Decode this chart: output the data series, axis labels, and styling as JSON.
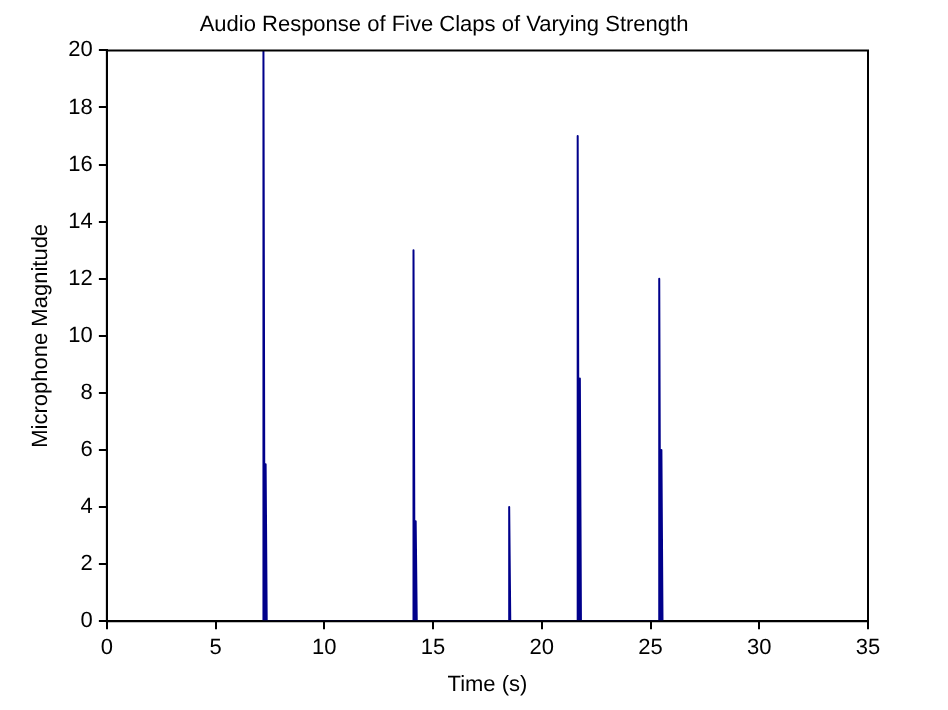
{
  "chart_data": {
    "type": "line",
    "title": "Audio Response of Five Claps of Varying Strength",
    "xlabel": "Time (s)",
    "ylabel": "Microphone Magnitude",
    "series": [
      {
        "color": "#00008b",
        "x": [
          7.15,
          7.2,
          7.25,
          7.3,
          7.35,
          14.05,
          14.1,
          14.15,
          14.2,
          14.25,
          18.45,
          18.5,
          18.55,
          21.6,
          21.65,
          21.7,
          21.75,
          21.8,
          25.35,
          25.4,
          25.45,
          25.5,
          25.55
        ],
        "values": [
          0,
          20,
          0,
          5.5,
          0,
          0,
          13,
          0,
          3.5,
          0,
          0,
          4,
          0,
          0,
          17,
          0,
          8.5,
          0,
          0,
          12,
          0,
          6,
          0
        ]
      }
    ],
    "xlim": [
      0,
      35
    ],
    "xticks": [
      0,
      5,
      10,
      15,
      20,
      25,
      30,
      35
    ],
    "ylim": [
      0,
      20
    ],
    "yticks": [
      0,
      2,
      4,
      6,
      8,
      10,
      12,
      14,
      16,
      18,
      20
    ],
    "grid": false,
    "legend": false,
    "marker": "none",
    "line_style": "solid"
  }
}
